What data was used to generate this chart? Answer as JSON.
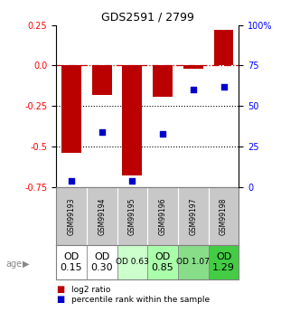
{
  "title": "GDS2591 / 2799",
  "samples": [
    "GSM99193",
    "GSM99194",
    "GSM99195",
    "GSM99196",
    "GSM99197",
    "GSM99198"
  ],
  "log2_ratio": [
    -0.54,
    -0.18,
    -0.68,
    -0.19,
    -0.02,
    0.22
  ],
  "percentile_rank": [
    4,
    34,
    4,
    33,
    60,
    62
  ],
  "bar_color": "#bb0000",
  "dot_color": "#0000cc",
  "ylim_left": [
    -0.75,
    0.25
  ],
  "ylim_right": [
    0,
    100
  ],
  "yticks_left": [
    0.25,
    0.0,
    -0.25,
    -0.5,
    -0.75
  ],
  "yticks_right": [
    100,
    75,
    50,
    25,
    0
  ],
  "hlines": [
    -0.25,
    -0.5
  ],
  "zero_line": 0,
  "age_labels": [
    "OD\n0.15",
    "OD\n0.30",
    "OD 0.63",
    "OD\n0.85",
    "OD 1.07",
    "OD\n1.29"
  ],
  "age_font_sizes": [
    8,
    8,
    6.5,
    8,
    6.5,
    8
  ],
  "age_bg_colors": [
    "#ffffff",
    "#ffffff",
    "#ccffcc",
    "#aaffaa",
    "#88dd88",
    "#44cc44"
  ],
  "gsm_bg_color": "#c8c8c8",
  "legend_items": [
    {
      "color": "#bb0000",
      "label": "log2 ratio"
    },
    {
      "color": "#0000cc",
      "label": "percentile rank within the sample"
    }
  ],
  "age_label": "age"
}
